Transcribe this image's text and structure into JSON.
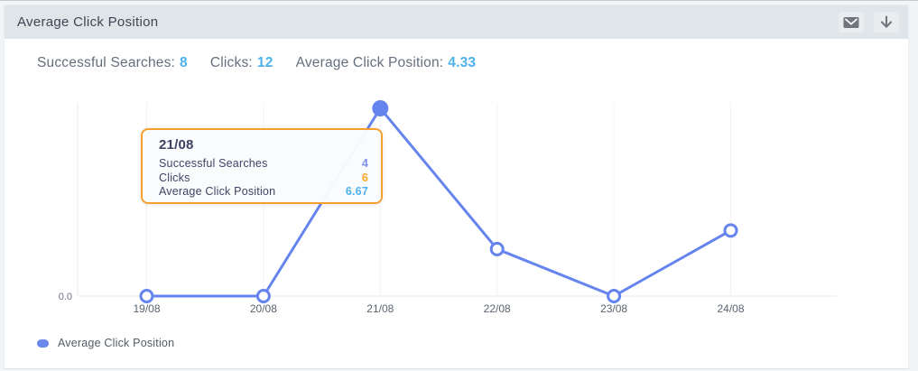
{
  "header": {
    "title": "Average Click Position",
    "mail_icon": "envelope-icon",
    "download_icon": "download-arrow-icon"
  },
  "stats": [
    {
      "label": "Successful Searches:",
      "value": "8",
      "color": "#4cb2e9"
    },
    {
      "label": "Clicks:",
      "value": "12",
      "color": "#4cb2e9"
    },
    {
      "label": "Average Click Position:",
      "value": "4.33",
      "color": "#4cb2e9"
    }
  ],
  "tooltip": {
    "title": "21/08",
    "border_color": "#f5a02e",
    "rows": [
      {
        "label": "Successful Searches",
        "value": "4",
        "color": "#7b8ff0"
      },
      {
        "label": "Clicks",
        "value": "6",
        "color": "#f9a825"
      },
      {
        "label": "Average Click Position",
        "value": "6.67",
        "color": "#4cb2ef"
      }
    ]
  },
  "legend": {
    "label": "Average Click Position",
    "dot_color": "#6a87ea"
  },
  "chart_data": {
    "type": "line",
    "title": "Average Click Position",
    "x": [
      "19/08",
      "20/08",
      "21/08",
      "22/08",
      "23/08",
      "24/08"
    ],
    "series": [
      {
        "name": "Average Click Position",
        "values": [
          0,
          0,
          6.67,
          1.67,
          0,
          2.33
        ]
      }
    ],
    "ylim": [
      0,
      6.67
    ],
    "ytick_labels": [
      "0.0"
    ],
    "grid": "vertical-only",
    "legend_position": "bottom-left",
    "line_color": "#6584ee",
    "point_fill": "#ffffff",
    "grid_color": "#f2f2f3",
    "axis_color": "#e9e9eb",
    "tick_color": "#5a6470",
    "highlight_index": 2
  }
}
